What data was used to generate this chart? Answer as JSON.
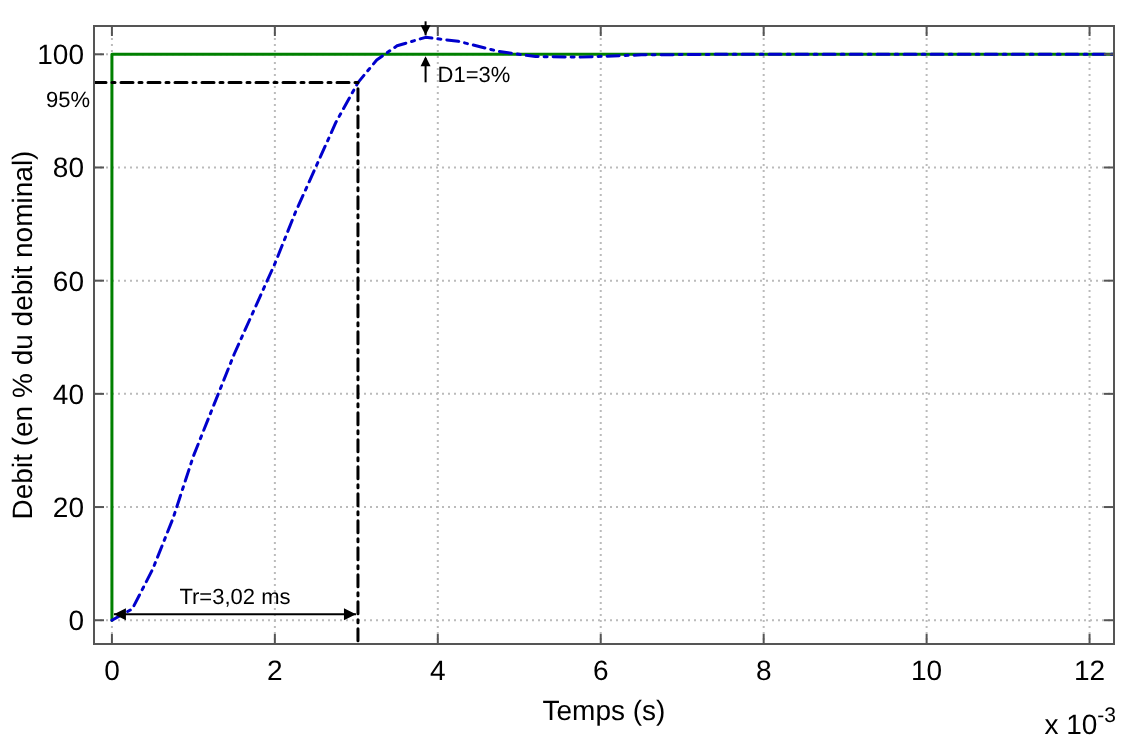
{
  "chart_data": {
    "type": "line",
    "xlabel": "Temps (s)",
    "ylabel": "Debit (en % du debit nominal)",
    "xlim": [
      -0.22,
      12.3
    ],
    "ylim": [
      -4.2,
      105
    ],
    "xticks": [
      0,
      2,
      4,
      6,
      8,
      10,
      12
    ],
    "yticks": [
      0,
      20,
      40,
      60,
      80,
      100
    ],
    "grid": true,
    "marker": "none",
    "series": [
      {
        "color": "#008000",
        "line_style": "solid",
        "x": [
          0,
          0,
          12.3
        ],
        "values": [
          0,
          100,
          100
        ]
      },
      {
        "color": "#0000cc",
        "line_style": "dashed",
        "x": [
          0,
          0.25,
          0.5,
          0.75,
          1,
          1.25,
          1.5,
          1.75,
          2,
          2.25,
          2.5,
          2.75,
          3.02,
          3.25,
          3.5,
          3.85,
          4.25,
          4.75,
          5.2,
          5.75,
          6.5,
          7.5,
          12.3
        ],
        "values": [
          0,
          2,
          9,
          18,
          29,
          38,
          47,
          55,
          63,
          72,
          80,
          88,
          95,
          99,
          101.5,
          103,
          102.3,
          100.5,
          99.6,
          99.5,
          99.9,
          100,
          100
        ]
      },
      {
        "color": "#000000",
        "line_style": "dashed",
        "x": [
          -0.22,
          3.02,
          3.02
        ],
        "values": [
          95,
          95,
          -4.2
        ]
      }
    ],
    "annotations": [
      {
        "text": "95%",
        "x": -0.22,
        "y": 95
      },
      "Tr=3,02 ms",
      {
        "text": "D1=3%",
        "x": 3.85,
        "y": 100
      },
      "x 10$^{-3}$"
    ]
  }
}
